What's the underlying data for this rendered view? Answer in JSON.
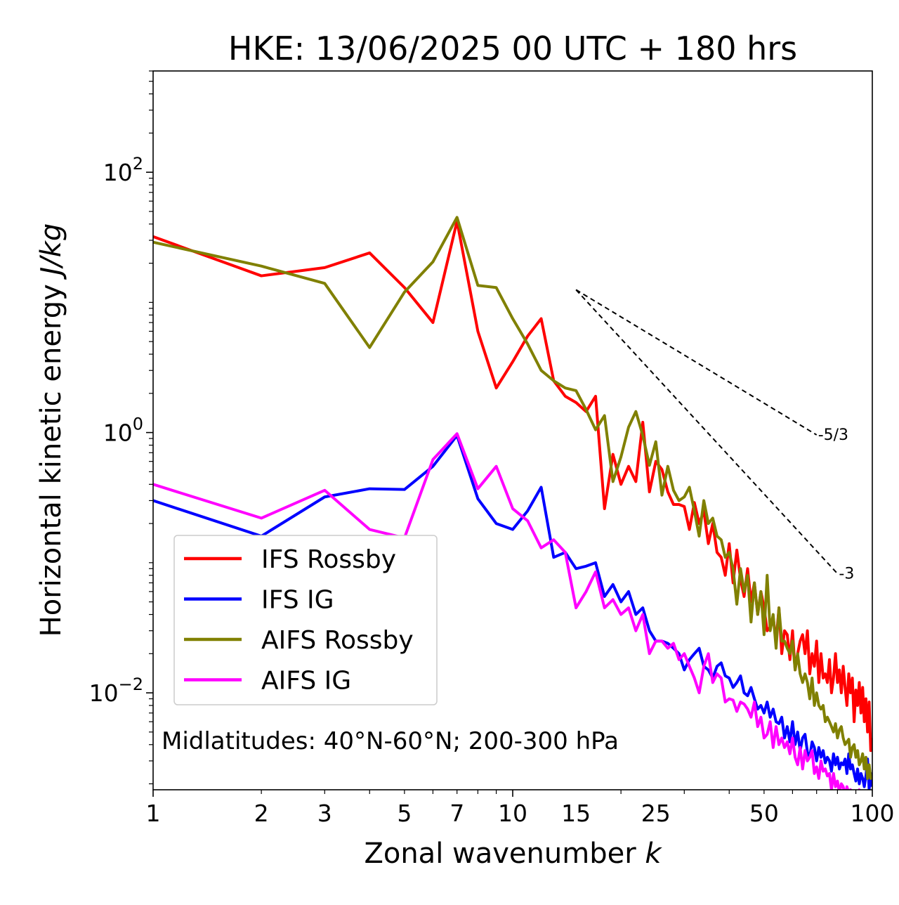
{
  "chart_data": {
    "type": "line",
    "title": "HKE: 13/06/2025 00 UTC + 180 hrs",
    "xlabel": "Zonal wavenumber",
    "xlabel_var": "k",
    "ylabel": "Horizontal kinetic energy",
    "ylabel_units": "J/kg",
    "xscale": "log",
    "yscale": "log",
    "xlim": [
      1,
      100
    ],
    "ylim": [
      0.0018,
      600
    ],
    "x_ticks": [
      1,
      2,
      3,
      5,
      7,
      10,
      15,
      25,
      50,
      100
    ],
    "x_tick_labels": [
      "1",
      "2",
      "3",
      "5",
      "7",
      "10",
      "15",
      "25",
      "50",
      "100"
    ],
    "y_ticks": [
      {
        "value": 100,
        "base": "10",
        "exp": "2"
      },
      {
        "value": 1,
        "base": "10",
        "exp": "0"
      },
      {
        "value": 0.01,
        "base": "10",
        "exp": "−2"
      }
    ],
    "grid": false,
    "legend_position": "lower-left",
    "annotation": "Midlatitudes: 40°N-60°N; 200-300 hPa",
    "reference_lines": [
      {
        "label": "-5/3",
        "slope": -1.6667,
        "x": [
          15,
          70
        ],
        "y0": 12.5
      },
      {
        "label": "-3",
        "slope": -3,
        "x": [
          15,
          80
        ],
        "y0": 12.5
      }
    ],
    "series": [
      {
        "name": "IFS Rossby",
        "color": "#ff0000",
        "x": [
          1,
          2,
          3,
          4,
          5,
          6,
          7,
          8,
          9,
          10,
          11,
          12,
          13,
          14,
          15,
          16,
          17,
          18,
          19,
          20,
          21,
          22,
          23,
          24,
          25,
          26,
          27,
          28,
          29,
          30,
          31,
          32,
          33,
          34,
          35,
          36,
          37,
          38,
          39,
          40,
          41,
          42,
          43,
          44,
          45,
          46,
          47,
          48,
          49,
          50,
          51,
          52,
          53,
          54,
          55,
          56,
          57,
          58,
          59,
          60,
          61,
          62,
          63,
          64,
          65,
          66,
          67,
          68,
          69,
          70,
          71,
          72,
          73,
          74,
          75,
          76,
          77,
          78,
          79,
          80,
          81,
          82,
          83,
          84,
          85,
          86,
          87,
          88,
          89,
          90,
          91,
          92,
          93,
          94,
          95,
          96,
          97,
          98,
          99,
          100
        ],
        "y": [
          32,
          16,
          18.5,
          24,
          13,
          7,
          42,
          6,
          2.2,
          3.5,
          5.5,
          7.5,
          2.5,
          1.9,
          1.7,
          1.45,
          1.9,
          0.26,
          0.68,
          0.4,
          0.55,
          0.42,
          1.2,
          0.35,
          0.6,
          0.52,
          0.35,
          0.28,
          0.28,
          0.27,
          0.18,
          0.29,
          0.2,
          0.25,
          0.14,
          0.2,
          0.12,
          0.11,
          0.08,
          0.14,
          0.07,
          0.125,
          0.075,
          0.055,
          0.09,
          0.05,
          0.07,
          0.04,
          0.06,
          0.045,
          0.03,
          0.032,
          0.038,
          0.025,
          0.045,
          0.02,
          0.03,
          0.028,
          0.018,
          0.03,
          0.015,
          0.02,
          0.025,
          0.028,
          0.02,
          0.03,
          0.014,
          0.02,
          0.016,
          0.025,
          0.012,
          0.02,
          0.013,
          0.014,
          0.012,
          0.018,
          0.01,
          0.013,
          0.02,
          0.012,
          0.015,
          0.01,
          0.016,
          0.011,
          0.008,
          0.014,
          0.01,
          0.013,
          0.006,
          0.0105,
          0.008,
          0.012,
          0.007,
          0.011,
          0.006,
          0.009,
          0.005,
          0.0085,
          0.0036,
          0.0045
        ]
      },
      {
        "name": "IFS IG",
        "color": "#0000ff",
        "x": [
          1,
          2,
          3,
          4,
          5,
          6,
          7,
          8,
          9,
          10,
          11,
          12,
          13,
          14,
          15,
          16,
          17,
          18,
          19,
          20,
          21,
          22,
          23,
          24,
          25,
          26,
          27,
          28,
          29,
          30,
          31,
          32,
          33,
          34,
          35,
          36,
          37,
          38,
          39,
          40,
          41,
          42,
          43,
          44,
          45,
          46,
          47,
          48,
          49,
          50,
          51,
          52,
          53,
          54,
          55,
          56,
          57,
          58,
          59,
          60,
          61,
          62,
          63,
          64,
          65,
          66,
          67,
          68,
          69,
          70,
          71,
          72,
          73,
          74,
          75,
          76,
          77,
          78,
          79,
          80,
          81,
          82,
          83,
          84,
          85,
          86,
          87,
          88,
          89,
          90,
          91,
          92,
          93,
          94,
          95,
          96,
          97,
          98,
          99,
          100
        ],
        "y": [
          0.3,
          0.16,
          0.32,
          0.37,
          0.365,
          0.55,
          0.95,
          0.31,
          0.2,
          0.18,
          0.25,
          0.38,
          0.11,
          0.12,
          0.09,
          0.094,
          0.1,
          0.055,
          0.068,
          0.05,
          0.06,
          0.04,
          0.045,
          0.03,
          0.025,
          0.025,
          0.024,
          0.022,
          0.02,
          0.015,
          0.018,
          0.02,
          0.022,
          0.016,
          0.015,
          0.013,
          0.016,
          0.017,
          0.0135,
          0.013,
          0.011,
          0.012,
          0.0135,
          0.01,
          0.0095,
          0.011,
          0.009,
          0.0075,
          0.008,
          0.007,
          0.0085,
          0.0065,
          0.0075,
          0.006,
          0.0058,
          0.0065,
          0.0045,
          0.0055,
          0.0042,
          0.006,
          0.004,
          0.005,
          0.0036,
          0.0045,
          0.0048,
          0.0035,
          0.0032,
          0.0042,
          0.0038,
          0.003,
          0.0038,
          0.0032,
          0.0036,
          0.0029,
          0.0032,
          0.003,
          0.0025,
          0.0034,
          0.0028,
          0.0032,
          0.0026,
          0.0029,
          0.0028,
          0.0031,
          0.0024,
          0.0034,
          0.0026,
          0.0028,
          0.0024,
          0.0021,
          0.0026,
          0.002,
          0.0024,
          0.0022,
          0.0019,
          0.0023,
          0.0031,
          0.0018,
          0.0024,
          0.0019
        ]
      },
      {
        "name": "AIFS Rossby",
        "color": "#808000",
        "x": [
          1,
          2,
          3,
          4,
          5,
          6,
          7,
          8,
          9,
          10,
          11,
          12,
          13,
          14,
          15,
          16,
          17,
          18,
          19,
          20,
          21,
          22,
          23,
          24,
          25,
          26,
          27,
          28,
          29,
          30,
          31,
          32,
          33,
          34,
          35,
          36,
          37,
          38,
          39,
          40,
          41,
          42,
          43,
          44,
          45,
          46,
          47,
          48,
          49,
          50,
          51,
          52,
          53,
          54,
          55,
          56,
          57,
          58,
          59,
          60,
          61,
          62,
          63,
          64,
          65,
          66,
          67,
          68,
          69,
          70,
          71,
          72,
          73,
          74,
          75,
          76,
          77,
          78,
          79,
          80,
          81,
          82,
          83,
          84,
          85,
          86,
          87,
          88,
          89,
          90,
          91,
          92,
          93,
          94,
          95,
          96,
          97,
          98,
          99,
          100
        ],
        "y": [
          29,
          19,
          14,
          4.5,
          12,
          20.5,
          45,
          13.5,
          13,
          7.5,
          4.8,
          3,
          2.5,
          2.2,
          2.1,
          1.5,
          1.05,
          1.35,
          0.42,
          0.65,
          1.1,
          1.45,
          0.95,
          0.56,
          0.85,
          0.33,
          0.55,
          0.36,
          0.3,
          0.32,
          0.38,
          0.25,
          0.16,
          0.3,
          0.2,
          0.22,
          0.16,
          0.15,
          0.11,
          0.12,
          0.09,
          0.048,
          0.09,
          0.06,
          0.08,
          0.035,
          0.07,
          0.04,
          0.06,
          0.028,
          0.08,
          0.03,
          0.04,
          0.022,
          0.045,
          0.025,
          0.025,
          0.022,
          0.02,
          0.025,
          0.015,
          0.02,
          0.014,
          0.012,
          0.014,
          0.012,
          0.009,
          0.013,
          0.008,
          0.01,
          0.008,
          0.0075,
          0.008,
          0.006,
          0.0065,
          0.006,
          0.0055,
          0.005,
          0.0058,
          0.0045,
          0.0052,
          0.0055,
          0.0045,
          0.004,
          0.0042,
          0.0044,
          0.0032,
          0.0038,
          0.004,
          0.0032,
          0.0036,
          0.0028,
          0.003,
          0.0034,
          0.0026,
          0.0032,
          0.0022,
          0.0028,
          0.0022,
          0.0023
        ]
      },
      {
        "name": "AIFS IG",
        "color": "#ff00ff",
        "x": [
          1,
          2,
          3,
          4,
          5,
          6,
          7,
          8,
          9,
          10,
          11,
          12,
          13,
          14,
          15,
          16,
          17,
          18,
          19,
          20,
          21,
          22,
          23,
          24,
          25,
          26,
          27,
          28,
          29,
          30,
          31,
          32,
          33,
          34,
          35,
          36,
          37,
          38,
          39,
          40,
          41,
          42,
          43,
          44,
          45,
          46,
          47,
          48,
          49,
          50,
          51,
          52,
          53,
          54,
          55,
          56,
          57,
          58,
          59,
          60,
          61,
          62,
          63,
          64,
          65,
          66,
          67,
          68,
          69,
          70,
          71,
          72,
          73,
          74,
          75,
          76,
          77,
          78,
          79,
          80,
          81,
          82,
          83,
          84,
          85,
          86,
          87,
          88,
          89,
          90,
          91,
          92,
          93,
          94,
          95,
          96,
          97,
          98,
          99,
          100
        ],
        "y": [
          0.4,
          0.22,
          0.36,
          0.18,
          0.155,
          0.62,
          0.98,
          0.37,
          0.55,
          0.26,
          0.21,
          0.13,
          0.15,
          0.12,
          0.045,
          0.06,
          0.085,
          0.045,
          0.052,
          0.04,
          0.045,
          0.03,
          0.04,
          0.02,
          0.025,
          0.025,
          0.022,
          0.024,
          0.018,
          0.02,
          0.016,
          0.013,
          0.01,
          0.016,
          0.02,
          0.012,
          0.014,
          0.013,
          0.0085,
          0.009,
          0.0088,
          0.0072,
          0.0085,
          0.0082,
          0.0075,
          0.0065,
          0.0085,
          0.0055,
          0.0065,
          0.0045,
          0.0048,
          0.006,
          0.0038,
          0.0055,
          0.004,
          0.0045,
          0.0038,
          0.0042,
          0.0034,
          0.0045,
          0.0032,
          0.0028,
          0.0038,
          0.0026,
          0.0036,
          0.003,
          0.0032,
          0.0036,
          0.0024,
          0.0027,
          0.0022,
          0.003,
          0.0025,
          0.0026,
          0.0023,
          0.0024,
          0.0018,
          0.0024,
          0.0019,
          0.0021,
          0.0017,
          0.002,
          0.0019,
          0.0016,
          0.0019,
          0.0017,
          0.0018,
          0.0016,
          0.0017,
          0.0015,
          0.0016,
          0.0018,
          0.0014,
          0.0015,
          0.0014,
          0.0013,
          0.0016,
          0.0013,
          0.0014,
          0.0013
        ]
      }
    ]
  }
}
